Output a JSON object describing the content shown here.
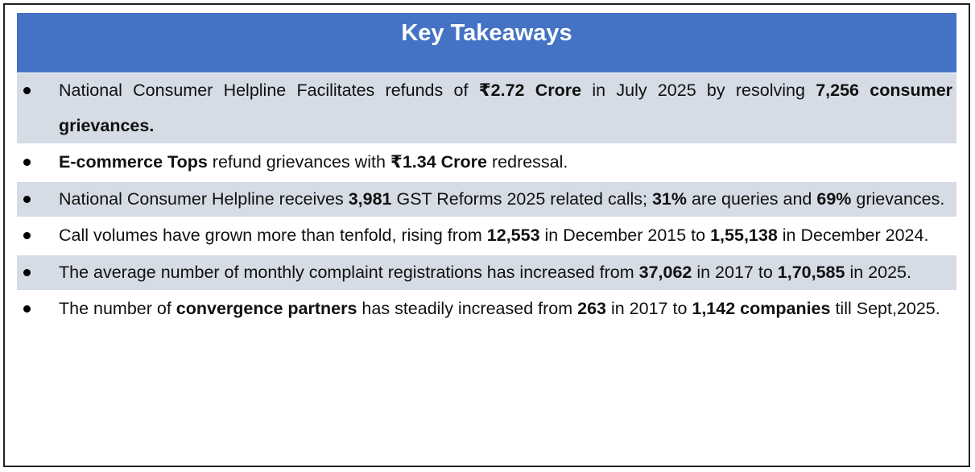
{
  "header": {
    "title": "Key Takeaways"
  },
  "items": [
    {
      "segments": [
        {
          "text": "National Consumer Helpline Facilitates refunds of ",
          "bold": false
        },
        {
          "text": "₹2.72 Crore",
          "bold": true
        },
        {
          "text": " in July 2025 by resolving ",
          "bold": false
        },
        {
          "text": "7,256 consumer grievances.",
          "bold": true
        }
      ]
    },
    {
      "segments": [
        {
          "text": "E-commerce Tops",
          "bold": true
        },
        {
          "text": " refund grievances with ",
          "bold": false
        },
        {
          "text": "₹1.34 Crore",
          "bold": true
        },
        {
          "text": " redressal.",
          "bold": false
        }
      ]
    },
    {
      "segments": [
        {
          "text": "National Consumer Helpline receives ",
          "bold": false
        },
        {
          "text": "3,981",
          "bold": true
        },
        {
          "text": " GST Reforms 2025 related calls; ",
          "bold": false
        },
        {
          "text": "31%",
          "bold": true
        },
        {
          "text": " are queries and ",
          "bold": false
        },
        {
          "text": "69%",
          "bold": true
        },
        {
          "text": " grievances.",
          "bold": false
        }
      ]
    },
    {
      "segments": [
        {
          "text": "Call volumes have grown more than tenfold, rising from ",
          "bold": false
        },
        {
          "text": "12,553",
          "bold": true
        },
        {
          "text": " in December 2015 to ",
          "bold": false
        },
        {
          "text": "1,55,138",
          "bold": true
        },
        {
          "text": " in December 2024.",
          "bold": false
        }
      ]
    },
    {
      "segments": [
        {
          "text": "The average number of monthly complaint registrations has increased from ",
          "bold": false
        },
        {
          "text": "37,062",
          "bold": true
        },
        {
          "text": " in 2017 to ",
          "bold": false
        },
        {
          "text": "1,70,585",
          "bold": true
        },
        {
          "text": " in 2025.",
          "bold": false
        }
      ]
    },
    {
      "segments": [
        {
          "text": "The number of ",
          "bold": false
        },
        {
          "text": "convergence partners",
          "bold": true
        },
        {
          "text": " has steadily increased from ",
          "bold": false
        },
        {
          "text": "263",
          "bold": true
        },
        {
          "text": " in 2017 to ",
          "bold": false
        },
        {
          "text": "1,142 companies",
          "bold": true
        },
        {
          "text": " till Sept,2025.",
          "bold": false
        }
      ]
    }
  ]
}
